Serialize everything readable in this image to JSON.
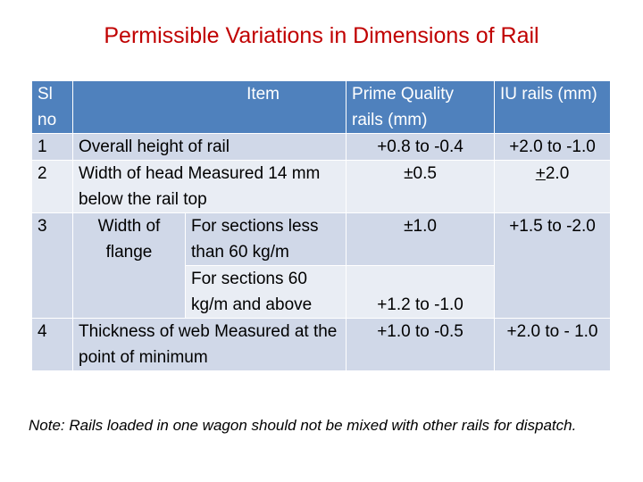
{
  "title": "Permissible Variations in Dimensions of Rail",
  "table": {
    "headers": {
      "sl_no": "Sl no",
      "item": "Item",
      "prime": "Prime Quality rails (mm)",
      "iu": "IU rails (mm)"
    },
    "rows": [
      {
        "sl": "1",
        "item": "Overall height of rail",
        "prime": "+0.8 to -0.4",
        "iu": "+2.0 to -1.0"
      },
      {
        "sl": "2",
        "item": "Width of head Measured 14 mm below the rail top",
        "prime": "±0.5",
        "iu_sign": "+",
        "iu_value": "2.0"
      },
      {
        "sl": "3",
        "item": "Width of flange",
        "sub_a": "For sections less than 60 kg/m",
        "prime_a": "±1.0",
        "sub_b": "For sections 60 kg/m and above",
        "prime_b": "+1.2 to -1.0",
        "iu": "+1.5 to -2.0"
      },
      {
        "sl": "4",
        "item": "Thickness of web Measured at the point of minimum",
        "prime": "+1.0 to -0.5",
        "iu": "+2.0 to - 1.0"
      }
    ]
  },
  "note": "Note: Rails loaded in one wagon should not be mixed with other rails for dispatch.",
  "colors": {
    "title": "#c00000",
    "header_bg": "#4f81bd",
    "row_dark": "#d0d8e8",
    "row_light": "#e9edf4"
  }
}
